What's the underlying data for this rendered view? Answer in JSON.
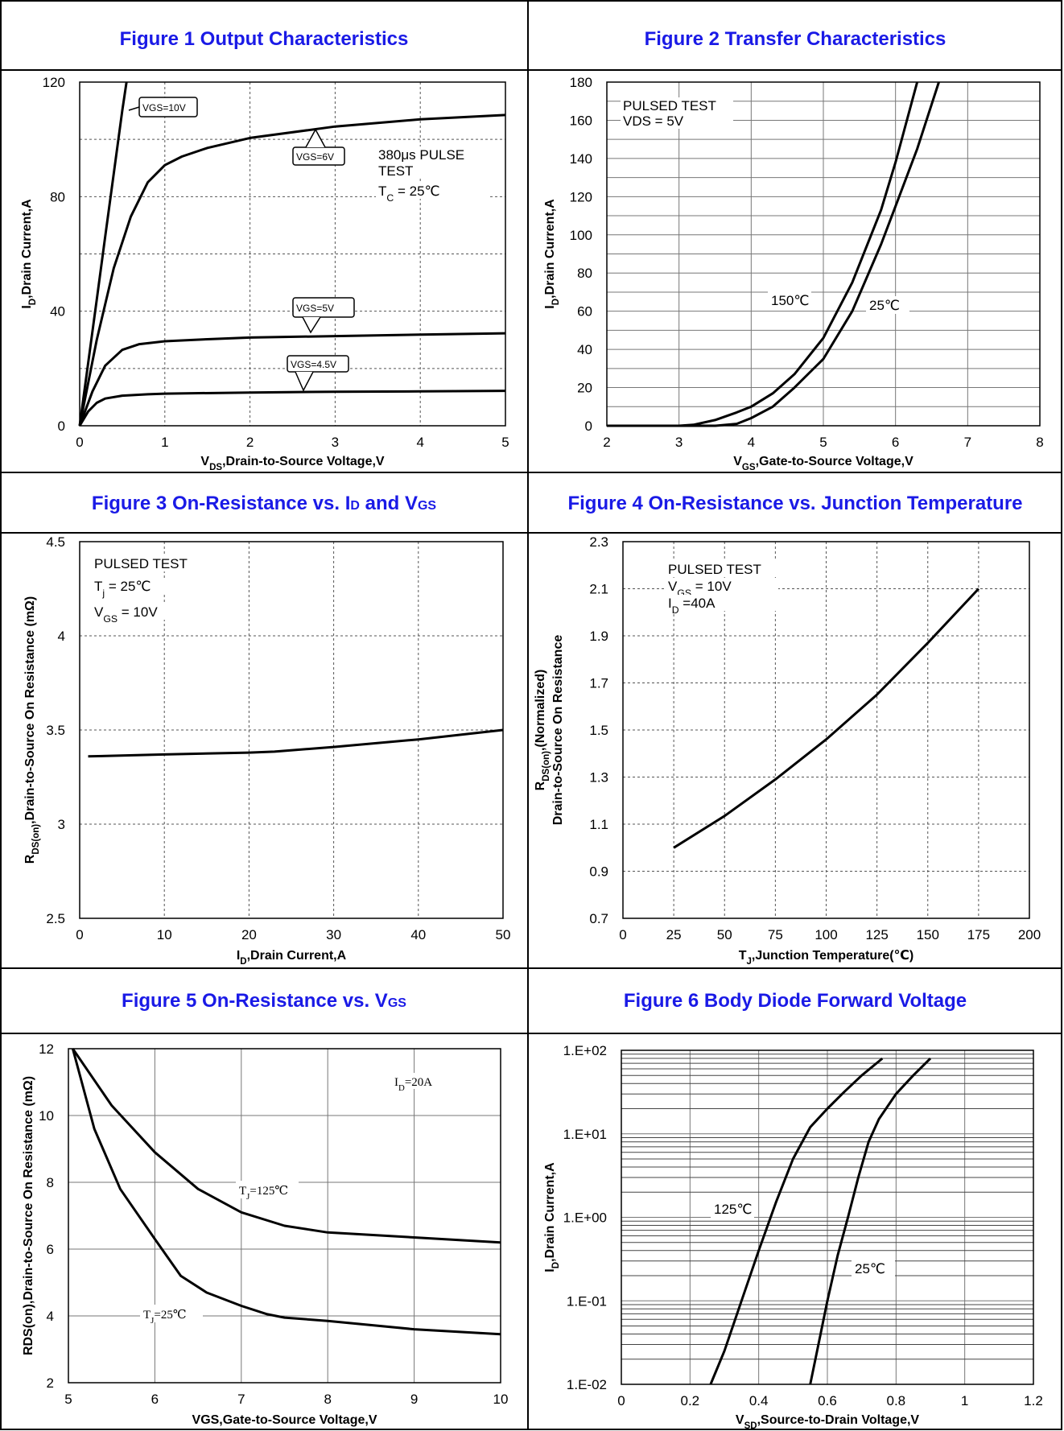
{
  "titles": {
    "fig1": "Figure 1 Output Characteristics",
    "fig2": "Figure 2 Transfer Characteristics",
    "fig3_a": "Figure 3 On-Resistance vs. I",
    "fig3_b": "D",
    "fig3_c": " and V",
    "fig3_d": "GS",
    "fig4": "Figure 4 On-Resistance vs. Junction Temperature",
    "fig5_a": "Figure 5 On-Resistance vs. V",
    "fig5_b": "GS",
    "fig6": "Figure 6 Body Diode Forward Voltage"
  },
  "chart_data": [
    {
      "id": "fig1",
      "type": "line",
      "xlabel": "V_DS,Drain-to-Source Voltage,V",
      "ylabel": "I_D,Drain Current,A",
      "xlim": [
        0,
        5
      ],
      "ylim": [
        0,
        120
      ],
      "xticks": [
        "0",
        "1",
        "2",
        "3",
        "4",
        "5"
      ],
      "yticks": [
        "0",
        "40",
        "80",
        "120"
      ],
      "grid": "dashed",
      "annotations": [
        "380μs PULSE",
        "TEST",
        "T_C = 25℃"
      ],
      "series": [
        {
          "name": "VGS=10V",
          "x": [
            0,
            0.1,
            0.2,
            0.3,
            0.4,
            0.5,
            0.55
          ],
          "y": [
            0,
            22,
            44,
            66,
            88,
            110,
            120
          ]
        },
        {
          "name": "VGS=6V",
          "x": [
            0,
            0.2,
            0.4,
            0.6,
            0.8,
            1.0,
            1.2,
            1.5,
            2.0,
            3.0,
            4.0,
            5.0
          ],
          "y": [
            0,
            30,
            55,
            73,
            85,
            91,
            94,
            97,
            100.5,
            104.5,
            107,
            108.5
          ]
        },
        {
          "name": "VGS=5V",
          "x": [
            0,
            0.15,
            0.3,
            0.5,
            0.7,
            1.0,
            1.5,
            2.0,
            3.0,
            4.0,
            5.0
          ],
          "y": [
            0,
            12,
            21,
            26.5,
            28.5,
            29.5,
            30.2,
            30.8,
            31.3,
            31.8,
            32.3
          ]
        },
        {
          "name": "VGS=4.5V",
          "x": [
            0,
            0.1,
            0.2,
            0.3,
            0.5,
            0.8,
            1.0,
            2.0,
            3.0,
            4.0,
            5.0
          ],
          "y": [
            0,
            5,
            8,
            9.5,
            10.5,
            11,
            11.2,
            11.6,
            11.9,
            12.0,
            12.2
          ]
        }
      ]
    },
    {
      "id": "fig2",
      "type": "line",
      "xlabel": "V_GS,Gate-to-Source Voltage,V",
      "ylabel": "I_D,Drain Current,A",
      "xlim": [
        2,
        8
      ],
      "ylim": [
        0,
        180
      ],
      "xticks": [
        "2",
        "3",
        "4",
        "5",
        "6",
        "7",
        "8"
      ],
      "yticks": [
        "0",
        "20",
        "40",
        "60",
        "80",
        "100",
        "120",
        "140",
        "160",
        "180"
      ],
      "grid": "solid",
      "annotations": [
        "PULSED TEST",
        "VDS = 5V"
      ],
      "series": [
        {
          "name": "150℃",
          "x": [
            2,
            3,
            3.2,
            3.5,
            3.8,
            4.0,
            4.3,
            4.6,
            5.0,
            5.4,
            5.8,
            6.0,
            6.3
          ],
          "y": [
            0,
            0,
            0.5,
            3,
            7,
            10,
            17,
            27,
            46,
            75,
            113,
            138,
            180
          ]
        },
        {
          "name": "25℃",
          "x": [
            2,
            3.5,
            3.8,
            4.0,
            4.3,
            4.6,
            5.0,
            5.4,
            5.8,
            6.0,
            6.3,
            6.6
          ],
          "y": [
            0,
            0,
            1,
            4,
            10,
            20,
            35,
            60,
            95,
            115,
            145,
            180
          ]
        }
      ]
    },
    {
      "id": "fig3",
      "type": "line",
      "xlabel": "I_D,Drain Current,A",
      "ylabel": "R_DS(on),Drain-to-Source On Resistance (mΩ)",
      "xlim": [
        0,
        50
      ],
      "ylim": [
        2.5,
        4.5
      ],
      "xticks": [
        "0",
        "10",
        "20",
        "30",
        "40",
        "50"
      ],
      "yticks": [
        "2.5",
        "3",
        "3.5",
        "4",
        "4.5"
      ],
      "grid": "dashed",
      "annotations": [
        "PULSED TEST",
        "T_j = 25℃",
        "V_GS = 10V"
      ],
      "series": [
        {
          "name": "",
          "x": [
            1,
            10,
            20,
            23,
            30,
            40,
            50
          ],
          "y": [
            3.36,
            3.37,
            3.38,
            3.385,
            3.41,
            3.45,
            3.5
          ]
        }
      ]
    },
    {
      "id": "fig4",
      "type": "line",
      "xlabel": "T_J,Junction Temperature(℃)",
      "ylabel": "R_DS(on),(Normalized) Drain-to-Source On Resistance",
      "xlim": [
        0,
        200
      ],
      "ylim": [
        0.7,
        2.3
      ],
      "xticks": [
        "0",
        "25",
        "50",
        "75",
        "100",
        "125",
        "150",
        "175",
        "200"
      ],
      "yticks": [
        "0.7",
        "0.9",
        "1.1",
        "1.3",
        "1.5",
        "1.7",
        "1.9",
        "2.1",
        "2.3"
      ],
      "grid": "dashed",
      "annotations": [
        "PULSED TEST",
        "V_GS = 10V",
        "I_D =40A"
      ],
      "series": [
        {
          "name": "",
          "x": [
            25,
            50,
            75,
            100,
            125,
            150,
            175
          ],
          "y": [
            1.0,
            1.135,
            1.29,
            1.46,
            1.65,
            1.87,
            2.1
          ]
        }
      ]
    },
    {
      "id": "fig5",
      "type": "line",
      "xlabel": "VGS,Gate-to-Source Voltage,V",
      "ylabel": "RDS(on),Drain-to-Source On Resistance (mΩ)",
      "xlim": [
        5,
        10
      ],
      "ylim": [
        2,
        12
      ],
      "xticks": [
        "5",
        "6",
        "7",
        "8",
        "9",
        "10"
      ],
      "yticks": [
        "2",
        "4",
        "6",
        "8",
        "10",
        "12"
      ],
      "grid": "solid",
      "annotations": [
        "I_D=20A"
      ],
      "series": [
        {
          "name": "T_J=125℃",
          "x": [
            5.05,
            5.5,
            6.0,
            6.5,
            7.0,
            7.5,
            8.0,
            9.0,
            10.0
          ],
          "y": [
            12,
            10.3,
            8.9,
            7.8,
            7.1,
            6.7,
            6.5,
            6.35,
            6.2
          ]
        },
        {
          "name": "T_J=25℃",
          "x": [
            5.05,
            5.3,
            5.6,
            6.0,
            6.3,
            6.6,
            7.0,
            7.3,
            7.5,
            8.0,
            9.0,
            10.0
          ],
          "y": [
            12,
            9.6,
            7.8,
            6.3,
            5.2,
            4.7,
            4.3,
            4.05,
            3.95,
            3.85,
            3.6,
            3.45
          ]
        }
      ]
    },
    {
      "id": "fig6",
      "type": "line",
      "xlabel": "V_SD,Source-to-Drain Voltage,V",
      "ylabel": "I_D,Drain Current,A",
      "xlim": [
        0,
        1.2
      ],
      "ylim": [
        0.01,
        100
      ],
      "yscale": "log",
      "xticks": [
        "0",
        "0.2",
        "0.4",
        "0.6",
        "0.8",
        "1",
        "1.2"
      ],
      "yticks": [
        "1.E-02",
        "1.E-01",
        "1.E+00",
        "1.E+01",
        "1.E+02"
      ],
      "grid": "solid",
      "series": [
        {
          "name": "125℃",
          "x": [
            0.26,
            0.3,
            0.35,
            0.4,
            0.45,
            0.5,
            0.55,
            0.6,
            0.65,
            0.7,
            0.76
          ],
          "y": [
            0.01,
            0.025,
            0.1,
            0.4,
            1.5,
            5,
            12,
            20,
            32,
            50,
            80
          ]
        },
        {
          "name": "25℃",
          "x": [
            0.55,
            0.57,
            0.6,
            0.63,
            0.66,
            0.69,
            0.72,
            0.75,
            0.8,
            0.85,
            0.9
          ],
          "y": [
            0.01,
            0.025,
            0.1,
            0.35,
            1,
            3,
            8,
            15,
            30,
            50,
            80
          ]
        }
      ]
    }
  ]
}
